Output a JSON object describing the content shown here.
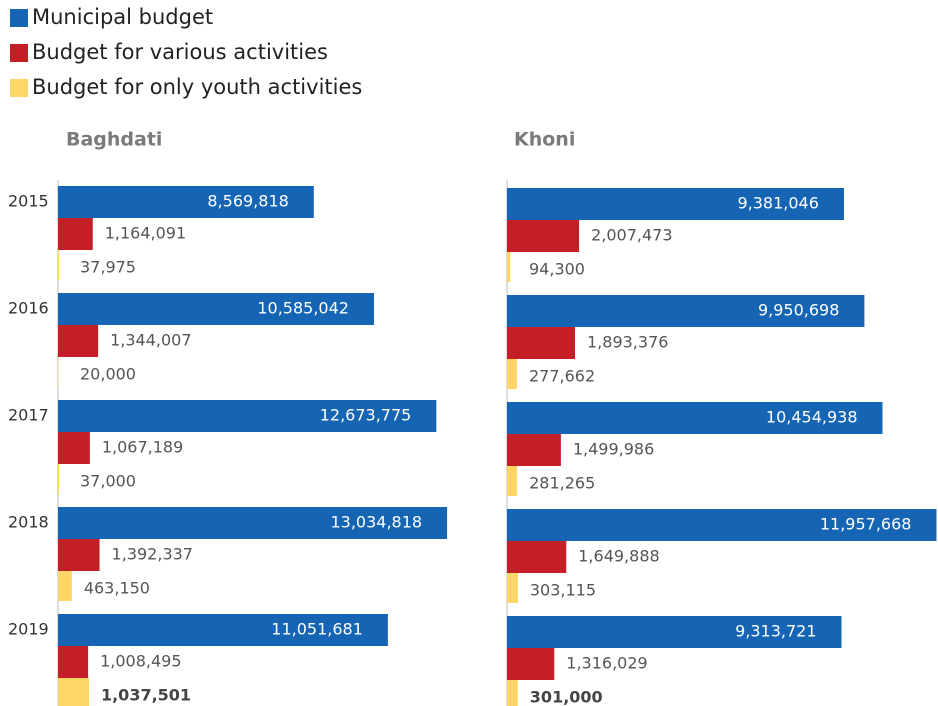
{
  "chart_data": [
    {
      "type": "bar",
      "orientation": "horizontal",
      "title": "Baghdati",
      "categories": [
        "2015",
        "2016",
        "2017",
        "2018",
        "2019"
      ],
      "xlim": [
        0,
        13400000
      ],
      "series": [
        {
          "name": "Municipal budget",
          "color": "#1565b4",
          "values": [
            8569818,
            10585042,
            12673775,
            13034818,
            11051681
          ],
          "value_labels": [
            "8,569,818",
            "10,585,042",
            "12,673,775",
            "13,034,818",
            "11,051,681"
          ]
        },
        {
          "name": "Budget for various activities",
          "color": "#c41e26",
          "values": [
            1164091,
            1344007,
            1067189,
            1392337,
            1008495
          ],
          "value_labels": [
            "1,164,091",
            "1,344,007",
            "1,067,189",
            "1,392,337",
            "1,008,495"
          ]
        },
        {
          "name": "Budget for only youth activities",
          "color": "#fdd667",
          "values": [
            37975,
            20000,
            37000,
            463150,
            1037501
          ],
          "value_labels": [
            "37,975",
            "20,000",
            "37,000",
            "463,150",
            "1,037,501"
          ]
        }
      ]
    },
    {
      "type": "bar",
      "orientation": "horizontal",
      "title": "Khoni",
      "categories": [
        "2015",
        "2016",
        "2017",
        "2018",
        "2019"
      ],
      "xlim": [
        0,
        12000000
      ],
      "series": [
        {
          "color": "#1565b4",
          "values": [
            9381046,
            9950698,
            10454938,
            11957668,
            9313721
          ],
          "value_labels": [
            "9,381,046",
            "9,950,698",
            "10,454,938",
            "11,957,668",
            "9,313,721"
          ]
        },
        {
          "color": "#c41e26",
          "values": [
            2007473,
            1893376,
            1499986,
            1649888,
            1316029
          ],
          "value_labels": [
            "2,007,473",
            "1,893,376",
            "1,499,986",
            "1,649,888",
            "1,316,029"
          ]
        },
        {
          "color": "#fdd667",
          "values": [
            94300,
            277662,
            281265,
            303115,
            301000
          ],
          "value_labels": [
            "94,300",
            "277,662",
            "281,265",
            "303,115",
            "301,000"
          ]
        }
      ]
    }
  ]
}
